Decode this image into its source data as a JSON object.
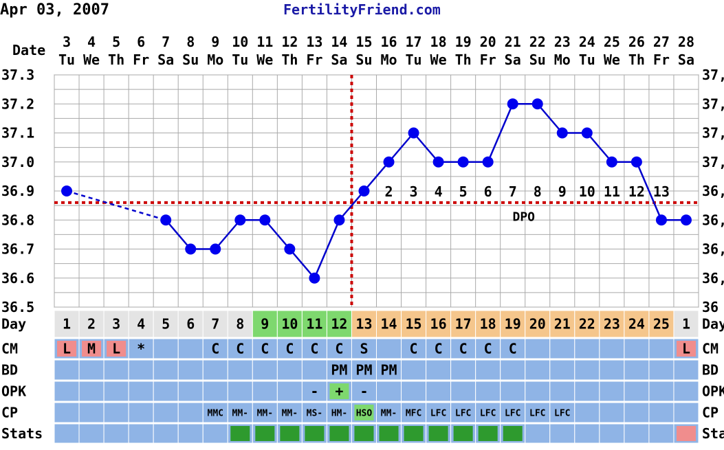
{
  "header": {
    "date": "Apr 03, 2007",
    "site": "FertilityFriend.com"
  },
  "chart_data": {
    "type": "line",
    "x_label": "Date",
    "dates": [
      "3",
      "4",
      "5",
      "6",
      "7",
      "8",
      "9",
      "10",
      "11",
      "12",
      "13",
      "14",
      "15",
      "16",
      "17",
      "18",
      "19",
      "20",
      "21",
      "22",
      "23",
      "24",
      "25",
      "26",
      "27",
      "28"
    ],
    "weekdays": [
      "Tu",
      "We",
      "Th",
      "Fr",
      "Sa",
      "Su",
      "Mo",
      "Tu",
      "We",
      "Th",
      "Fr",
      "Sa",
      "Su",
      "Mo",
      "Tu",
      "We",
      "Th",
      "Fr",
      "Sa",
      "Su",
      "Mo",
      "Tu",
      "We",
      "Th",
      "Fr",
      "Sa"
    ],
    "ylim": [
      36.5,
      37.3
    ],
    "y_ticks": [
      "36.5",
      "36.6",
      "36.7",
      "36.8",
      "36.9",
      "37.0",
      "37.1",
      "37.2",
      "37.3"
    ],
    "right_axis_ticks": [
      "36",
      "36,",
      "36,",
      "36,",
      "36,",
      "37,",
      "37,",
      "37,",
      "37,"
    ],
    "temps": [
      36.9,
      null,
      null,
      null,
      36.8,
      36.7,
      36.7,
      36.8,
      36.8,
      36.7,
      36.6,
      36.8,
      36.9,
      37.0,
      37.1,
      37.0,
      37.0,
      37.0,
      37.2,
      37.2,
      37.1,
      37.1,
      37.0,
      37.0,
      36.8,
      36.8
    ],
    "coverline": 36.86,
    "ovulation_index": 11,
    "dpo_label": "DPO",
    "dpo_numbers": [
      "",
      "2",
      "3",
      "4",
      "5",
      "6",
      "7",
      "8",
      "9",
      "10",
      "11",
      "12",
      "13"
    ],
    "dpo_start_index": 12,
    "rows": {
      "day": {
        "label": "Day",
        "values": [
          "1",
          "2",
          "3",
          "4",
          "5",
          "6",
          "7",
          "8",
          "9",
          "10",
          "11",
          "12",
          "13",
          "14",
          "15",
          "16",
          "17",
          "18",
          "19",
          "20",
          "21",
          "22",
          "23",
          "24",
          "25",
          "1"
        ]
      },
      "cm": {
        "label": "CM",
        "values": [
          "L",
          "M",
          "L",
          "*",
          "",
          "",
          "C",
          "C",
          "C",
          "C",
          "C",
          "C",
          "S",
          "",
          "C",
          "C",
          "C",
          "C",
          "C",
          "",
          "",
          "",
          "",
          "",
          "",
          "L"
        ]
      },
      "bd": {
        "label": "BD",
        "values": [
          "",
          "",
          "",
          "",
          "",
          "",
          "",
          "",
          "",
          "",
          "",
          "PM",
          "PM",
          "PM",
          "",
          "",
          "",
          "",
          "",
          "",
          "",
          "",
          "",
          "",
          "",
          ""
        ]
      },
      "opk": {
        "label": "OPK",
        "values": [
          "",
          "",
          "",
          "",
          "",
          "",
          "",
          "",
          "",
          "",
          "-",
          "+",
          "-",
          "",
          "",
          "",
          "",
          "",
          "",
          "",
          "",
          "",
          "",
          "",
          "",
          ""
        ]
      },
      "cp": {
        "label": "CP",
        "values": [
          "",
          "",
          "",
          "",
          "",
          "",
          "MMC",
          "MM-",
          "MM-",
          "MM-",
          "MS-",
          "HM-",
          "HSO",
          "MM-",
          "MFC",
          "LFC",
          "LFC",
          "LFC",
          "LFC",
          "LFC",
          "LFC",
          "",
          "",
          "",
          "",
          ""
        ]
      },
      "stats": {
        "label": "Stats",
        "values": [
          0,
          0,
          0,
          0,
          0,
          0,
          0,
          1,
          1,
          1,
          1,
          1,
          1,
          1,
          1,
          1,
          1,
          1,
          1,
          0,
          0,
          0,
          0,
          0,
          0,
          2
        ]
      }
    },
    "right_labels": [
      "Day",
      "CM",
      "BD",
      "OPK",
      "CP",
      "Sta"
    ],
    "colors": {
      "line": "#0000cc",
      "point": "#0000ee",
      "grid": "#a9a9a9",
      "coverline": "#cc0000",
      "row_blue": "#8fb4e6",
      "menses": "#f08d8d",
      "fertile": "#7ed86e",
      "luteal": "#f5c68c",
      "day_default": "#e4e4e4",
      "opk_pos": "#7ed86e",
      "hso": "#7ed86e",
      "stats_green": "#2e9a2e",
      "stats_pink": "#f08d8d"
    }
  }
}
